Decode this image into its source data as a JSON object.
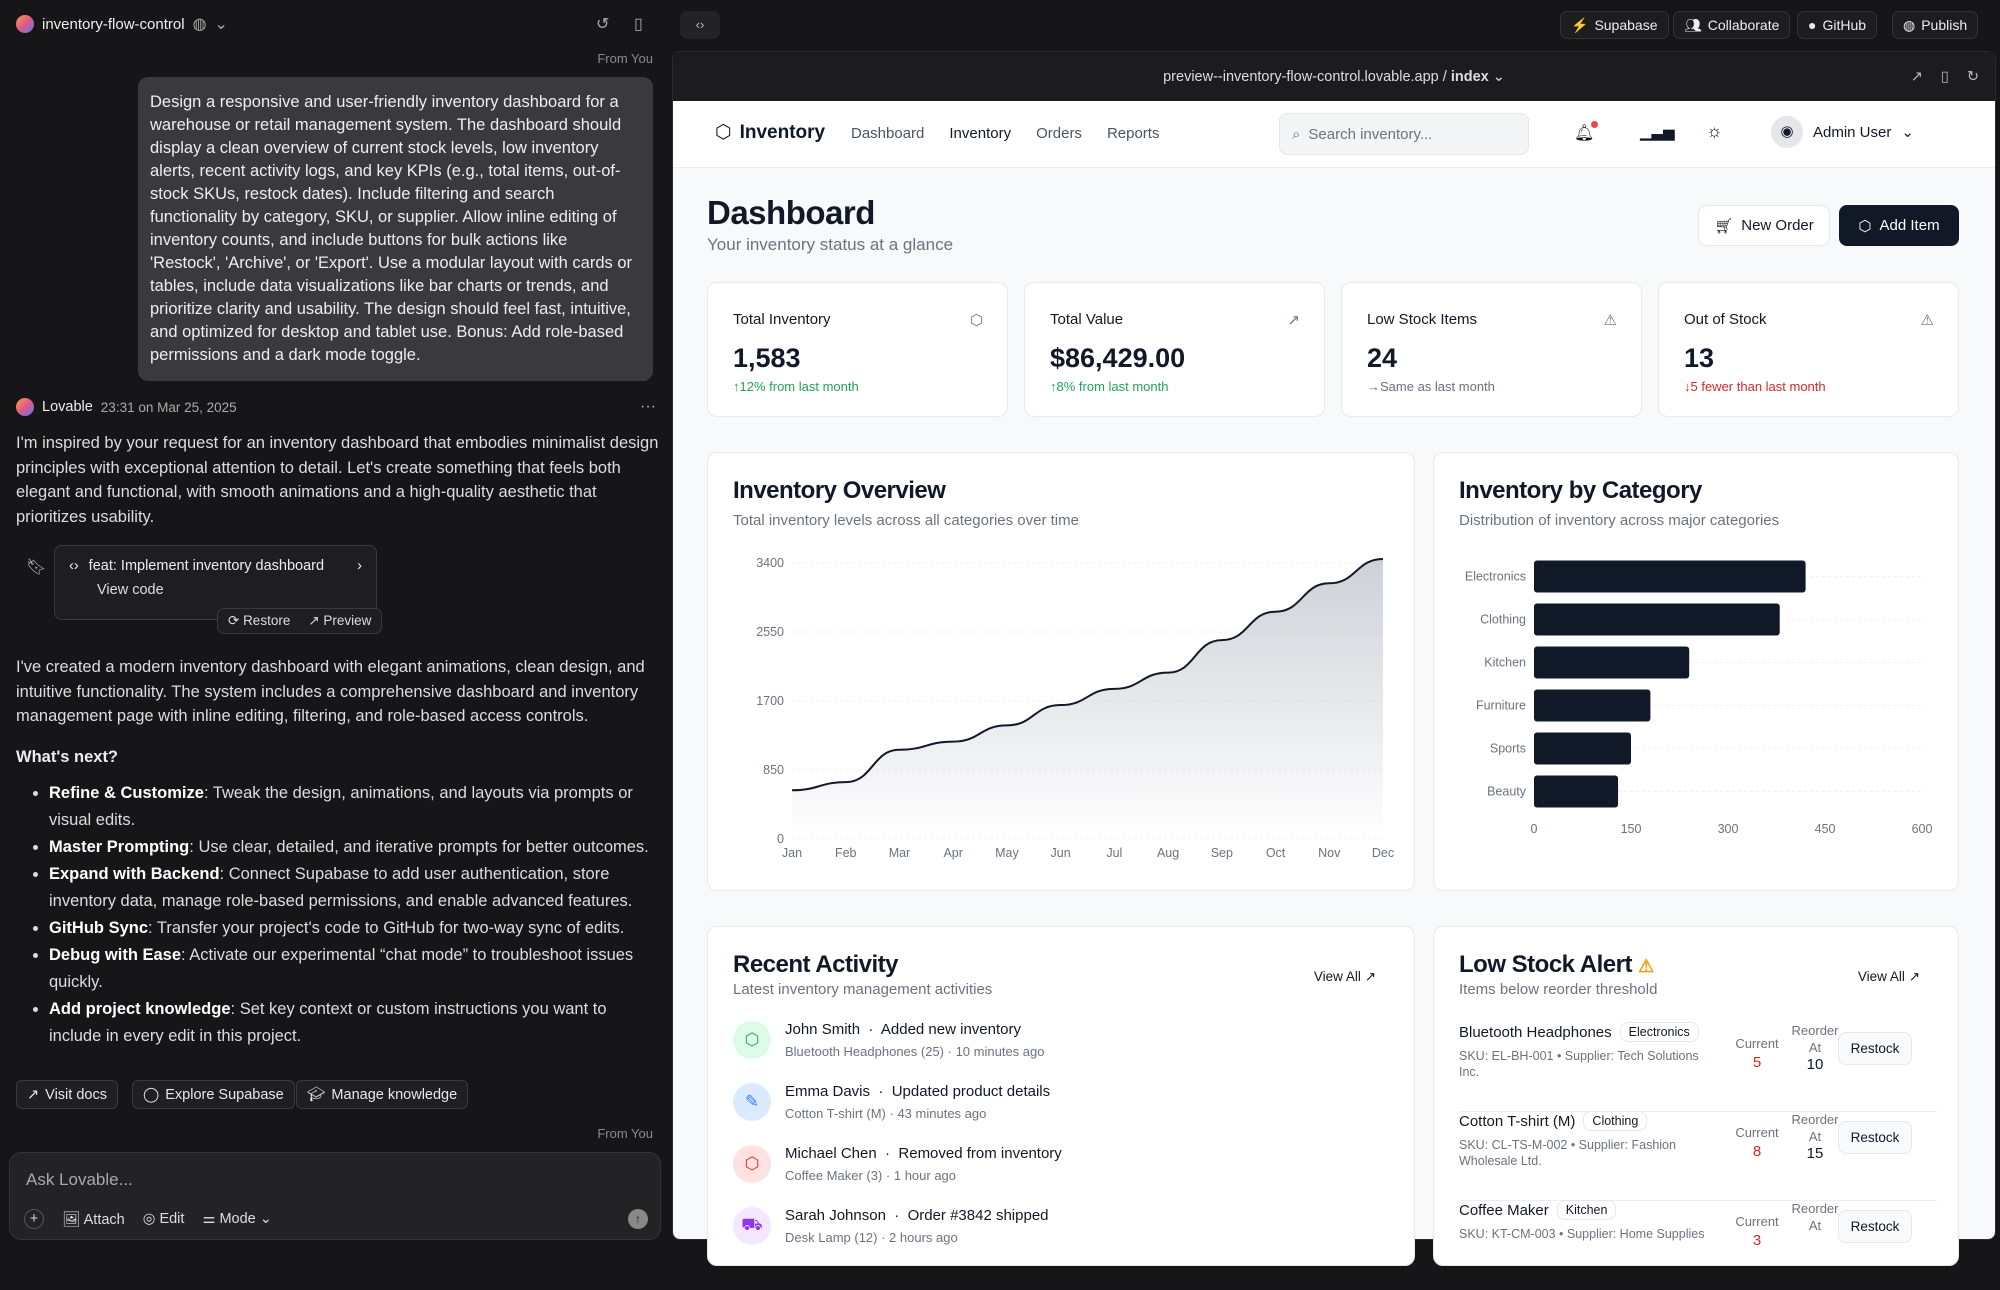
{
  "topbar": {
    "project": "inventory-flow-control",
    "buttons": [
      "Supabase",
      "Collaborate",
      "GitHub",
      "Publish"
    ]
  },
  "chat": {
    "from_you": "From You",
    "user_message": "Design a responsive and user-friendly inventory dashboard for a warehouse or retail management system. The dashboard should display a clean overview of current stock levels, low inventory alerts, recent activity logs, and key KPIs (e.g., total items, out-of-stock SKUs, restock dates). Include filtering and search functionality by category, SKU, or supplier. Allow inline editing of inventory counts, and include buttons for bulk actions like 'Restock', 'Archive', or 'Export'. Use a modular layout with cards or tables, include data visualizations like bar charts or trends, and prioritize clarity and usability. The design should feel fast, intuitive, and optimized for desktop and tablet use. Bonus: Add role-based permissions and a dark mode toggle.",
    "assistant": "Lovable",
    "timestamp": "23:31 on Mar 25, 2025",
    "intro": "I'm inspired by your request for an inventory dashboard that embodies minimalist design principles with exceptional attention to detail. Let's create something that feels both elegant and functional, with smooth animations and a high-quality aesthetic that prioritizes usability.",
    "commit": {
      "title": "feat: Implement inventory dashboard",
      "view_code": "View code",
      "restore": "Restore",
      "preview": "Preview"
    },
    "summary": "I've created a modern inventory dashboard with elegant animations, clean design, and intuitive functionality. The system includes a comprehensive dashboard and inventory management page with inline editing, filtering, and role-based access controls.",
    "whats_next": "What's next?",
    "bullets": [
      {
        "bold": "Refine & Customize",
        "text": ": Tweak the design, animations, and layouts via prompts or visual edits."
      },
      {
        "bold": "Master Prompting",
        "text": ": Use clear, detailed, and iterative prompts for better outcomes."
      },
      {
        "bold": "Expand with Backend",
        "text": ": Connect Supabase to add user authentication, store inventory data, manage role-based permissions, and enable advanced features."
      },
      {
        "bold": "GitHub Sync",
        "text": ": Transfer your project's code to GitHub for two-way sync of edits."
      },
      {
        "bold": "Debug with Ease",
        "text": ": Activate our experimental “chat mode” to troubleshoot issues quickly."
      },
      {
        "bold": "Add project knowledge",
        "text": ": Set key context or custom instructions you want to include in every edit in this project."
      }
    ],
    "actions": [
      "Visit docs",
      "Explore Supabase",
      "Manage knowledge"
    ],
    "from_you_2": "From You",
    "input_placeholder": "Ask Lovable...",
    "input_tools": [
      "Attach",
      "Edit",
      "Mode"
    ]
  },
  "preview": {
    "url": "preview--inventory-flow-control.lovable.app",
    "page": "index",
    "brand": "Inventory",
    "nav": [
      "Dashboard",
      "Inventory",
      "Orders",
      "Reports"
    ],
    "search_placeholder": "Search inventory...",
    "user": "Admin User",
    "title": "Dashboard",
    "subtitle": "Your inventory status at a glance",
    "new_order": "New Order",
    "add_item": "Add Item",
    "kpis": [
      {
        "label": "Total Inventory",
        "value": "1,583",
        "change": "↑12% from last month",
        "tone": "#22a35a",
        "icon": "package-icon"
      },
      {
        "label": "Total Value",
        "value": "$86,429.00",
        "change": "↑8% from last month",
        "tone": "#22a35a",
        "icon": "trending-up-icon"
      },
      {
        "label": "Low Stock Items",
        "value": "24",
        "change": "→Same as last month",
        "tone": "#6b7280",
        "icon": "alert-triangle-icon"
      },
      {
        "label": "Out of Stock",
        "value": "13",
        "change": "↓5 fewer than last month",
        "tone": "#dc2626",
        "icon": "alert-triangle-icon"
      }
    ],
    "overview": {
      "title": "Inventory Overview",
      "subtitle": "Total inventory levels across all categories over time"
    },
    "category": {
      "title": "Inventory by Category",
      "subtitle": "Distribution of inventory across major categories"
    },
    "activity": {
      "title": "Recent Activity",
      "subtitle": "Latest inventory management activities",
      "view_all": "View All",
      "items": [
        {
          "user": "John Smith",
          "action": "Added new inventory",
          "detail": "Bluetooth Headphones (25)",
          "time": "10 minutes ago",
          "color": "#22a35a",
          "bg": "#dcfce7",
          "icon": "package-plus-icon"
        },
        {
          "user": "Emma Davis",
          "action": "Updated product details",
          "detail": "Cotton T-shirt (M)",
          "time": "43 minutes ago",
          "color": "#3b82f6",
          "bg": "#dbeafe",
          "icon": "edit-icon"
        },
        {
          "user": "Michael Chen",
          "action": "Removed from inventory",
          "detail": "Coffee Maker (3)",
          "time": "1 hour ago",
          "color": "#dc2626",
          "bg": "#fee2e2",
          "icon": "package-minus-icon"
        },
        {
          "user": "Sarah Johnson",
          "action": "Order #3842 shipped",
          "detail": "Desk Lamp (12)",
          "time": "2 hours ago",
          "color": "#9333ea",
          "bg": "#f3e8ff",
          "icon": "truck-icon"
        }
      ]
    },
    "low_stock": {
      "title": "Low Stock Alert",
      "subtitle": "Items below reorder threshold",
      "view_all": "View All",
      "current_label": "Current",
      "reorder_label": "Reorder At",
      "restock": "Restock",
      "items": [
        {
          "name": "Bluetooth Headphones",
          "category": "Electronics",
          "sku": "SKU: EL-BH-001 • Supplier: Tech Solutions Inc.",
          "current": "5",
          "reorder": "10"
        },
        {
          "name": "Cotton T-shirt (M)",
          "category": "Clothing",
          "sku": "SKU: CL-TS-M-002 • Supplier: Fashion Wholesale Ltd.",
          "current": "8",
          "reorder": "15"
        },
        {
          "name": "Coffee Maker",
          "category": "Kitchen",
          "sku": "SKU: KT-CM-003 • Supplier: Home Supplies",
          "current": "3",
          "reorder": ""
        }
      ]
    }
  },
  "chart_data": [
    {
      "type": "area",
      "x": [
        "Jan",
        "Feb",
        "Mar",
        "Apr",
        "May",
        "Jun",
        "Jul",
        "Aug",
        "Sep",
        "Oct",
        "Nov",
        "Dec"
      ],
      "values": [
        600,
        700,
        1100,
        1200,
        1400,
        1650,
        1850,
        2050,
        2450,
        2800,
        3150,
        3450
      ],
      "yticks": [
        0,
        850,
        1700,
        2550,
        3400
      ],
      "ylim": [
        0,
        3400
      ],
      "grid": true,
      "color": "#111827"
    },
    {
      "type": "bar",
      "orientation": "horizontal",
      "categories": [
        "Electronics",
        "Clothing",
        "Kitchen",
        "Furniture",
        "Sports",
        "Beauty"
      ],
      "values": [
        420,
        380,
        240,
        180,
        150,
        130
      ],
      "xticks": [
        0,
        150,
        300,
        450,
        600
      ],
      "xlim": [
        0,
        600
      ],
      "grid": true,
      "color": "#111827"
    }
  ]
}
